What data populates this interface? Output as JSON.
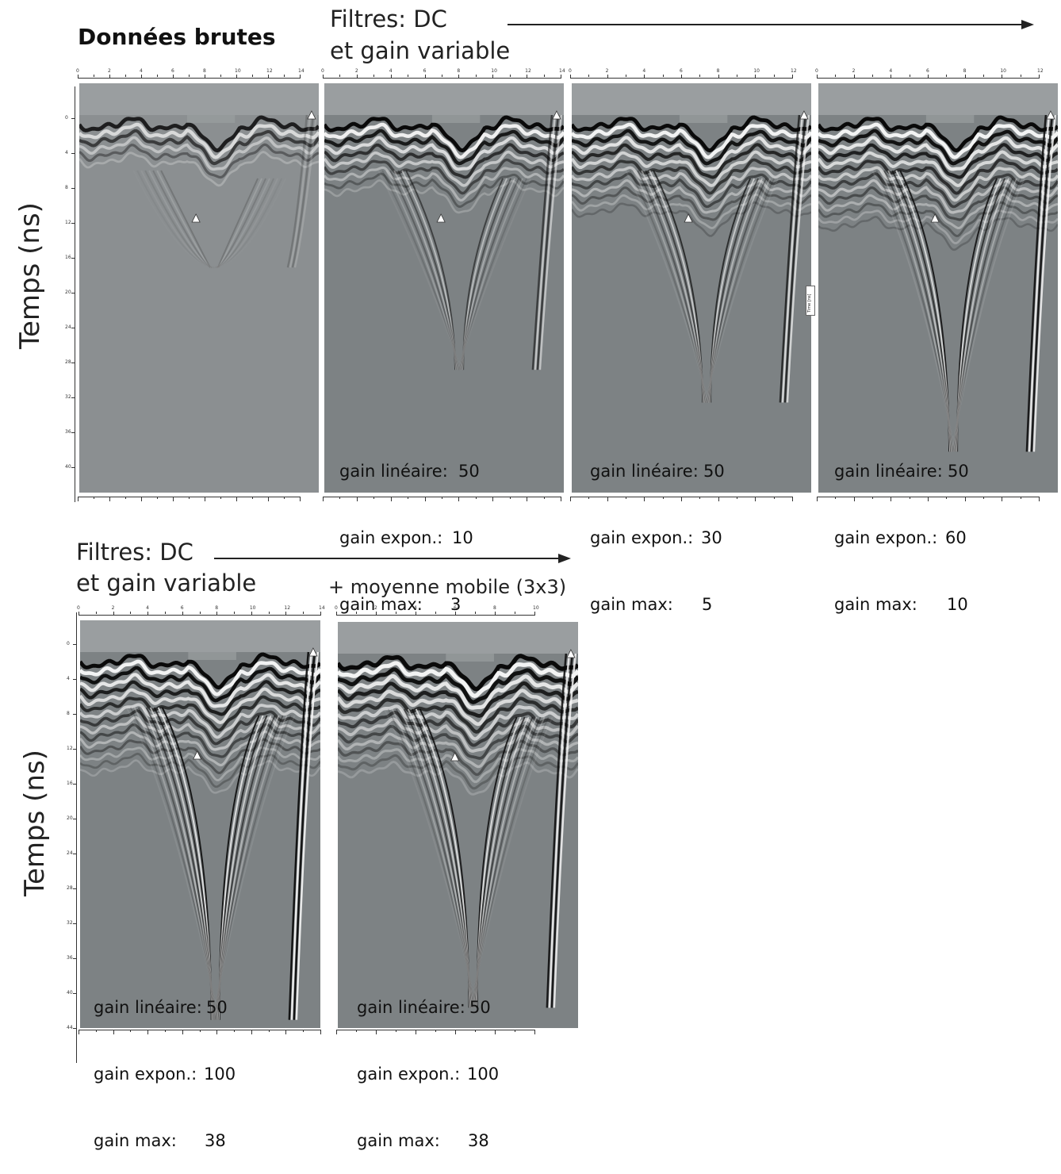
{
  "top": {
    "raw_title": "Données brutes",
    "filters_title_line1": "Filtres: DC",
    "filters_title_line2": "et gain variable",
    "y_label": "Temps (ns)",
    "x_ticks": [
      "0",
      "2",
      "4",
      "6",
      "8",
      "10",
      "12",
      "14"
    ],
    "y_ticks": [
      "0",
      "4",
      "8",
      "12",
      "16",
      "20",
      "24",
      "28",
      "32",
      "36",
      "40"
    ],
    "panels": [
      {
        "id": "raw",
        "label": null
      },
      {
        "id": "p2",
        "lines": [
          {
            "label": "gain linéaire:",
            "value": "50"
          },
          {
            "label": "gain expon.:",
            "value": "10"
          },
          {
            "label": "gain max:",
            "value": "3"
          }
        ]
      },
      {
        "id": "p3",
        "lines": [
          {
            "label": "gain linéaire:",
            "value": "50"
          },
          {
            "label": "gain expon.:",
            "value": "30"
          },
          {
            "label": "gain max:",
            "value": "5"
          }
        ]
      },
      {
        "id": "p4",
        "lines": [
          {
            "label": "gain linéaire:",
            "value": "50"
          },
          {
            "label": "gain expon.:",
            "value": "60"
          },
          {
            "label": "gain max:",
            "value": "10"
          }
        ]
      }
    ],
    "inner_axis_label": "Time [ns]"
  },
  "bottom": {
    "filters_title_line1": "Filtres: DC",
    "filters_title_line2": "et gain variable",
    "moving_avg": "+ moyenne mobile (3x3)",
    "y_label": "Temps (ns)",
    "x_ticks": [
      "0",
      "2",
      "4",
      "6",
      "8",
      "10",
      "12",
      "14"
    ],
    "x_ticks_right": [
      "0",
      "2",
      "4",
      "6",
      "8",
      "10"
    ],
    "y_ticks": [
      "0",
      "4",
      "8",
      "12",
      "16",
      "20",
      "24",
      "28",
      "32",
      "36",
      "40",
      "44"
    ],
    "panels": [
      {
        "id": "b1",
        "lines": [
          {
            "label": "gain linéaire:",
            "value": "50"
          },
          {
            "label": "gain expon.:",
            "value": "100"
          },
          {
            "label": "gain max:",
            "value": "38"
          }
        ]
      },
      {
        "id": "b2",
        "lines": [
          {
            "label": "gain linéaire:",
            "value": "50"
          },
          {
            "label": "gain expon.:",
            "value": "100"
          },
          {
            "label": "gain max:",
            "value": "38"
          }
        ]
      }
    ]
  },
  "colors": {
    "panel_bg": "#7f8486",
    "raw_bg": "#8a8e90",
    "ink": "#111111"
  }
}
